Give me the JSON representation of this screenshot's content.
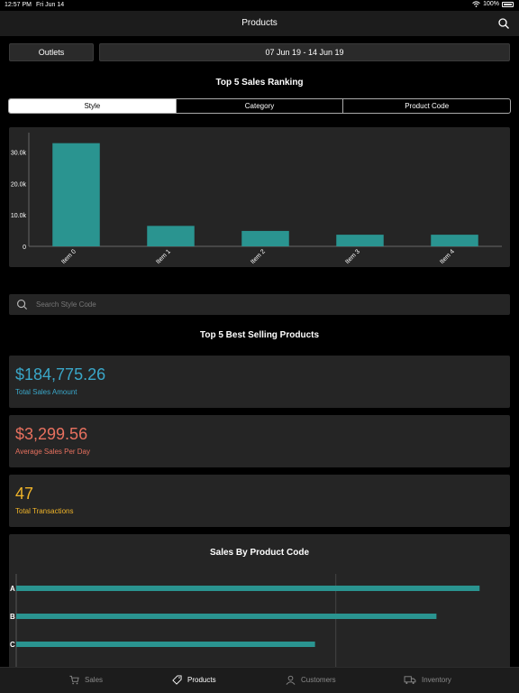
{
  "status_bar": {
    "time": "12:57 PM",
    "date": "Fri Jun 14",
    "battery": "100%"
  },
  "nav": {
    "title": "Products",
    "search_icon": "search-icon"
  },
  "filters": {
    "outlets_label": "Outlets",
    "date_range": "07 Jun 19 - 14 Jun 19"
  },
  "ranking": {
    "title": "Top 5 Sales Ranking",
    "tabs": [
      {
        "label": "Style",
        "active": true
      },
      {
        "label": "Category",
        "active": false
      },
      {
        "label": "Product Code",
        "active": false
      }
    ]
  },
  "search": {
    "placeholder": "Search Style Code"
  },
  "best_selling": {
    "title": "Top 5 Best Selling Products"
  },
  "metrics": [
    {
      "value": "$184,775.26",
      "label": "Total Sales Amount",
      "color": "#3aa7c9"
    },
    {
      "value": "$3,299.56",
      "label": "Average Sales Per Day",
      "color": "#e8715f"
    },
    {
      "value": "47",
      "label": "Total Transactions",
      "color": "#f0b429"
    }
  ],
  "chart_data": [
    {
      "type": "bar",
      "categories": [
        "Item 0",
        "Item 1",
        "Item 2",
        "Item 3",
        "Item 4"
      ],
      "values": [
        32800,
        6500,
        4900,
        3700,
        3700
      ],
      "ylim": [
        0,
        35000
      ],
      "yticks": [
        0,
        10000,
        20000,
        30000
      ],
      "ytick_labels": [
        "0",
        "10.0k",
        "20.0k",
        "30.0k"
      ],
      "color": "#2a9490",
      "grid": false
    },
    {
      "type": "bar",
      "orientation": "horizontal",
      "title": "Sales By Product Code",
      "categories": [
        "A",
        "B",
        "C"
      ],
      "values": [
        14500,
        13150,
        9350
      ],
      "xlim": [
        0,
        15000
      ],
      "color": "#2a9490",
      "grid": true
    }
  ],
  "tabbar": {
    "items": [
      {
        "label": "Sales",
        "icon": "cart-icon",
        "active": false
      },
      {
        "label": "Products",
        "icon": "tag-icon",
        "active": true
      },
      {
        "label": "Customers",
        "icon": "person-icon",
        "active": false
      },
      {
        "label": "Inventory",
        "icon": "truck-icon",
        "active": false
      }
    ]
  },
  "colors": {
    "background": "#000000",
    "card": "#252525",
    "accent": "#2a9490"
  }
}
